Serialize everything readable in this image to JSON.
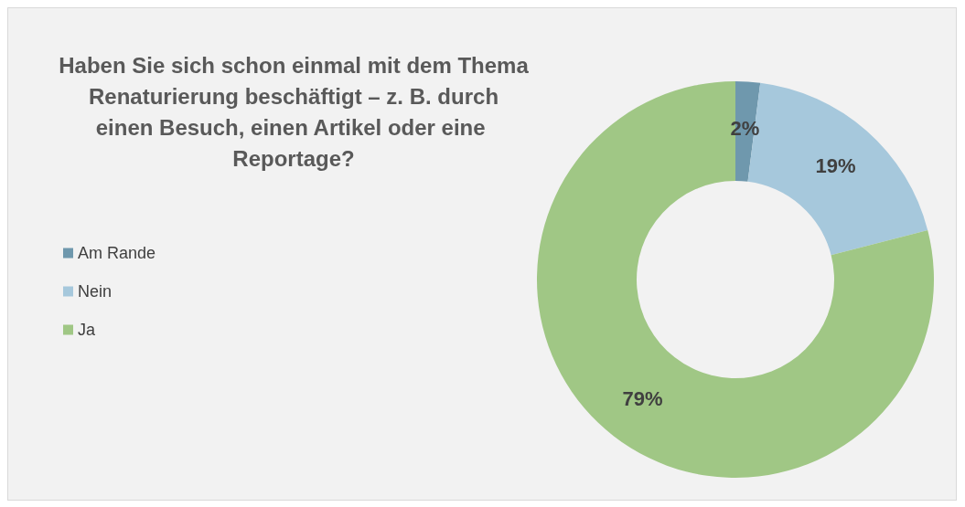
{
  "chart_data": {
    "type": "donut",
    "title": "Haben Sie sich schon einmal mit dem Thema Renaturierung beschäftigt – z. B. durch einen Besuch, einen Artikel oder eine Reportage?",
    "categories": [
      "Am Rande",
      "Nein",
      "Ja"
    ],
    "values": [
      2,
      19,
      79
    ],
    "colors": [
      "#6f98ad",
      "#a6c8dc",
      "#a0c785"
    ],
    "value_labels": [
      "2%",
      "19%",
      "79%"
    ],
    "legend": "left"
  }
}
